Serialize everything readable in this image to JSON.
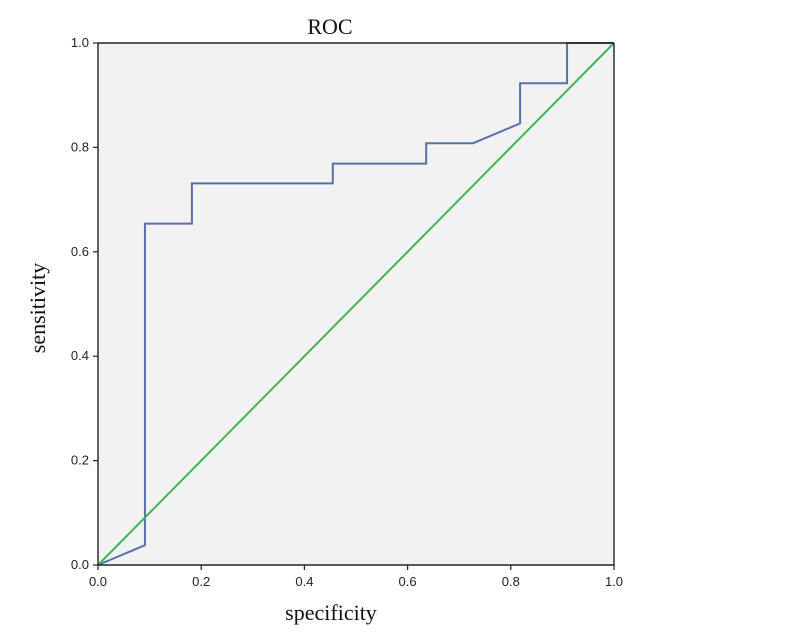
{
  "chart_data": {
    "type": "line",
    "title": "ROC",
    "xlabel": "specificity",
    "ylabel": "sensitivity",
    "xlim": [
      0,
      1
    ],
    "ylim": [
      0,
      1
    ],
    "x_ticks": [
      0.0,
      0.2,
      0.4,
      0.6,
      0.8,
      1.0
    ],
    "y_ticks": [
      0.0,
      0.2,
      0.4,
      0.6,
      0.8,
      1.0
    ],
    "x_tick_labels": [
      "0.0",
      "0.2",
      "0.4",
      "0.6",
      "0.8",
      "1.0"
    ],
    "y_tick_labels": [
      "0.0",
      "0.2",
      "0.4",
      "0.6",
      "0.8",
      "1.0"
    ],
    "grid": false,
    "legend": "none",
    "plot_background": "#f2f2f2",
    "series": [
      {
        "color": "#5b6fa8",
        "points": [
          [
            0.0,
            0.0
          ],
          [
            0.091,
            0.038
          ],
          [
            0.091,
            0.654
          ],
          [
            0.182,
            0.654
          ],
          [
            0.182,
            0.731
          ],
          [
            0.455,
            0.731
          ],
          [
            0.455,
            0.769
          ],
          [
            0.636,
            0.769
          ],
          [
            0.636,
            0.808
          ],
          [
            0.727,
            0.808
          ],
          [
            0.818,
            0.846
          ],
          [
            0.818,
            0.923
          ],
          [
            0.909,
            0.923
          ],
          [
            0.909,
            1.0
          ],
          [
            1.0,
            1.0
          ]
        ]
      },
      {
        "color": "#44b45a",
        "points": [
          [
            0.0,
            0.0
          ],
          [
            1.0,
            1.0
          ]
        ]
      }
    ]
  }
}
